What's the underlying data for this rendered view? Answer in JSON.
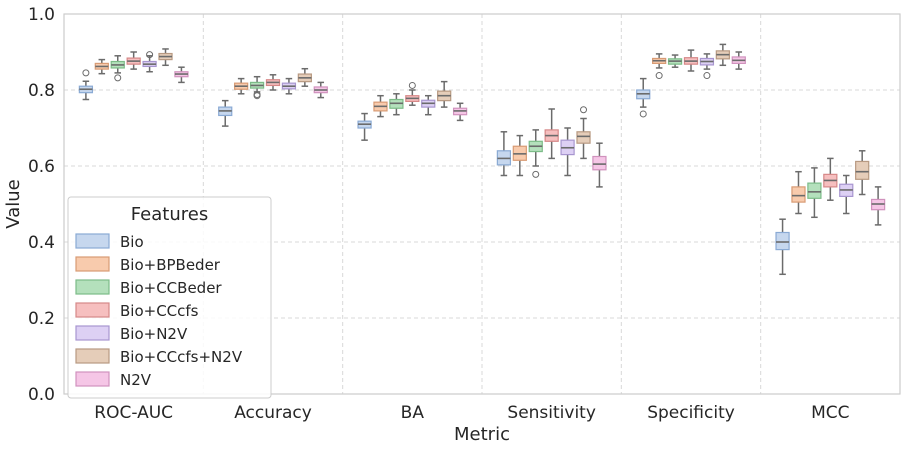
{
  "chart_data": {
    "type": "box",
    "xlabel": "Metric",
    "ylabel": "Value",
    "ylim": [
      0.0,
      1.0
    ],
    "yticks": [
      "0.0",
      "0.2",
      "0.4",
      "0.6",
      "0.8",
      "1.0"
    ],
    "grid": true,
    "legend": {
      "title": "Features",
      "placement": "lower-left"
    },
    "categories": [
      "ROC-AUC",
      "Accuracy",
      "BA",
      "Sensitivity",
      "Specificity",
      "MCC"
    ],
    "series": [
      {
        "name": "Bio",
        "color": "#c6d7ee",
        "edge": "#8aaad4",
        "boxes": [
          {
            "whislo": 0.775,
            "q1": 0.793,
            "med": 0.802,
            "q3": 0.81,
            "whishi": 0.823,
            "fliers": [
              0.845
            ]
          },
          {
            "whislo": 0.705,
            "q1": 0.733,
            "med": 0.745,
            "q3": 0.755,
            "whishi": 0.772,
            "fliers": []
          },
          {
            "whislo": 0.668,
            "q1": 0.7,
            "med": 0.71,
            "q3": 0.718,
            "whishi": 0.738,
            "fliers": []
          },
          {
            "whislo": 0.575,
            "q1": 0.603,
            "med": 0.62,
            "q3": 0.64,
            "whishi": 0.69,
            "fliers": []
          },
          {
            "whislo": 0.755,
            "q1": 0.777,
            "med": 0.79,
            "q3": 0.8,
            "whishi": 0.83,
            "fliers": [
              0.737
            ]
          },
          {
            "whislo": 0.315,
            "q1": 0.38,
            "med": 0.4,
            "q3": 0.425,
            "whishi": 0.46,
            "fliers": []
          }
        ]
      },
      {
        "name": "Bio+BPBeder",
        "color": "#f8cbad",
        "edge": "#d89b74",
        "boxes": [
          {
            "whislo": 0.843,
            "q1": 0.855,
            "med": 0.862,
            "q3": 0.87,
            "whishi": 0.88,
            "fliers": []
          },
          {
            "whislo": 0.79,
            "q1": 0.802,
            "med": 0.81,
            "q3": 0.818,
            "whishi": 0.83,
            "fliers": []
          },
          {
            "whislo": 0.73,
            "q1": 0.745,
            "med": 0.757,
            "q3": 0.768,
            "whishi": 0.785,
            "fliers": []
          },
          {
            "whislo": 0.575,
            "q1": 0.615,
            "med": 0.632,
            "q3": 0.652,
            "whishi": 0.68,
            "fliers": []
          },
          {
            "whislo": 0.858,
            "q1": 0.87,
            "med": 0.877,
            "q3": 0.883,
            "whishi": 0.895,
            "fliers": [
              0.838
            ]
          },
          {
            "whislo": 0.475,
            "q1": 0.505,
            "med": 0.522,
            "q3": 0.545,
            "whishi": 0.585,
            "fliers": []
          }
        ]
      },
      {
        "name": "Bio+CCBeder",
        "color": "#b4e0bc",
        "edge": "#7cbc88",
        "boxes": [
          {
            "whislo": 0.845,
            "q1": 0.858,
            "med": 0.866,
            "q3": 0.875,
            "whishi": 0.89,
            "fliers": [
              0.832
            ]
          },
          {
            "whislo": 0.795,
            "q1": 0.805,
            "med": 0.812,
            "q3": 0.82,
            "whishi": 0.835,
            "fliers": [
              0.785,
              0.788
            ]
          },
          {
            "whislo": 0.735,
            "q1": 0.752,
            "med": 0.765,
            "q3": 0.775,
            "whishi": 0.79,
            "fliers": []
          },
          {
            "whislo": 0.6,
            "q1": 0.638,
            "med": 0.652,
            "q3": 0.665,
            "whishi": 0.695,
            "fliers": [
              0.578
            ]
          },
          {
            "whislo": 0.86,
            "q1": 0.868,
            "med": 0.876,
            "q3": 0.882,
            "whishi": 0.892,
            "fliers": []
          },
          {
            "whislo": 0.465,
            "q1": 0.515,
            "med": 0.532,
            "q3": 0.555,
            "whishi": 0.595,
            "fliers": []
          }
        ]
      },
      {
        "name": "Bio+CCcfs",
        "color": "#f6bfbf",
        "edge": "#d68888",
        "boxes": [
          {
            "whislo": 0.855,
            "q1": 0.868,
            "med": 0.876,
            "q3": 0.884,
            "whishi": 0.9,
            "fliers": []
          },
          {
            "whislo": 0.8,
            "q1": 0.812,
            "med": 0.82,
            "q3": 0.827,
            "whishi": 0.84,
            "fliers": []
          },
          {
            "whislo": 0.76,
            "q1": 0.77,
            "med": 0.778,
            "q3": 0.785,
            "whishi": 0.8,
            "fliers": [
              0.812
            ]
          },
          {
            "whislo": 0.62,
            "q1": 0.665,
            "med": 0.68,
            "q3": 0.695,
            "whishi": 0.75,
            "fliers": []
          },
          {
            "whislo": 0.85,
            "q1": 0.868,
            "med": 0.876,
            "q3": 0.885,
            "whishi": 0.905,
            "fliers": []
          },
          {
            "whislo": 0.51,
            "q1": 0.545,
            "med": 0.562,
            "q3": 0.578,
            "whishi": 0.62,
            "fliers": []
          }
        ]
      },
      {
        "name": "Bio+N2V",
        "color": "#ddd0f4",
        "edge": "#a896d0",
        "boxes": [
          {
            "whislo": 0.848,
            "q1": 0.862,
            "med": 0.868,
            "q3": 0.875,
            "whishi": 0.89,
            "fliers": [
              0.893
            ]
          },
          {
            "whislo": 0.79,
            "q1": 0.803,
            "med": 0.81,
            "q3": 0.818,
            "whishi": 0.83,
            "fliers": []
          },
          {
            "whislo": 0.735,
            "q1": 0.755,
            "med": 0.765,
            "q3": 0.773,
            "whishi": 0.785,
            "fliers": []
          },
          {
            "whislo": 0.575,
            "q1": 0.63,
            "med": 0.648,
            "q3": 0.668,
            "whishi": 0.7,
            "fliers": []
          },
          {
            "whislo": 0.855,
            "q1": 0.866,
            "med": 0.875,
            "q3": 0.883,
            "whishi": 0.895,
            "fliers": [
              0.838
            ]
          },
          {
            "whislo": 0.475,
            "q1": 0.52,
            "med": 0.537,
            "q3": 0.552,
            "whishi": 0.575,
            "fliers": []
          }
        ]
      },
      {
        "name": "Bio+CCcfs+N2V",
        "color": "#e5cdb9",
        "edge": "#b89a82",
        "boxes": [
          {
            "whislo": 0.865,
            "q1": 0.88,
            "med": 0.888,
            "q3": 0.896,
            "whishi": 0.908,
            "fliers": []
          },
          {
            "whislo": 0.81,
            "q1": 0.822,
            "med": 0.832,
            "q3": 0.842,
            "whishi": 0.856,
            "fliers": []
          },
          {
            "whislo": 0.755,
            "q1": 0.772,
            "med": 0.785,
            "q3": 0.797,
            "whishi": 0.822,
            "fliers": []
          },
          {
            "whislo": 0.62,
            "q1": 0.66,
            "med": 0.678,
            "q3": 0.69,
            "whishi": 0.725,
            "fliers": [
              0.748
            ]
          },
          {
            "whislo": 0.865,
            "q1": 0.882,
            "med": 0.893,
            "q3": 0.903,
            "whishi": 0.92,
            "fliers": []
          },
          {
            "whislo": 0.525,
            "q1": 0.565,
            "med": 0.585,
            "q3": 0.612,
            "whishi": 0.64,
            "fliers": []
          }
        ]
      },
      {
        "name": "N2V",
        "color": "#f5c6e6",
        "edge": "#d092bd",
        "boxes": [
          {
            "whislo": 0.82,
            "q1": 0.835,
            "med": 0.842,
            "q3": 0.848,
            "whishi": 0.86,
            "fliers": []
          },
          {
            "whislo": 0.78,
            "q1": 0.793,
            "med": 0.8,
            "q3": 0.808,
            "whishi": 0.82,
            "fliers": []
          },
          {
            "whislo": 0.72,
            "q1": 0.735,
            "med": 0.745,
            "q3": 0.752,
            "whishi": 0.765,
            "fliers": []
          },
          {
            "whislo": 0.545,
            "q1": 0.59,
            "med": 0.605,
            "q3": 0.625,
            "whishi": 0.66,
            "fliers": []
          },
          {
            "whislo": 0.855,
            "q1": 0.87,
            "med": 0.878,
            "q3": 0.887,
            "whishi": 0.9,
            "fliers": []
          },
          {
            "whislo": 0.445,
            "q1": 0.485,
            "med": 0.5,
            "q3": 0.512,
            "whishi": 0.545,
            "fliers": []
          }
        ]
      }
    ]
  }
}
